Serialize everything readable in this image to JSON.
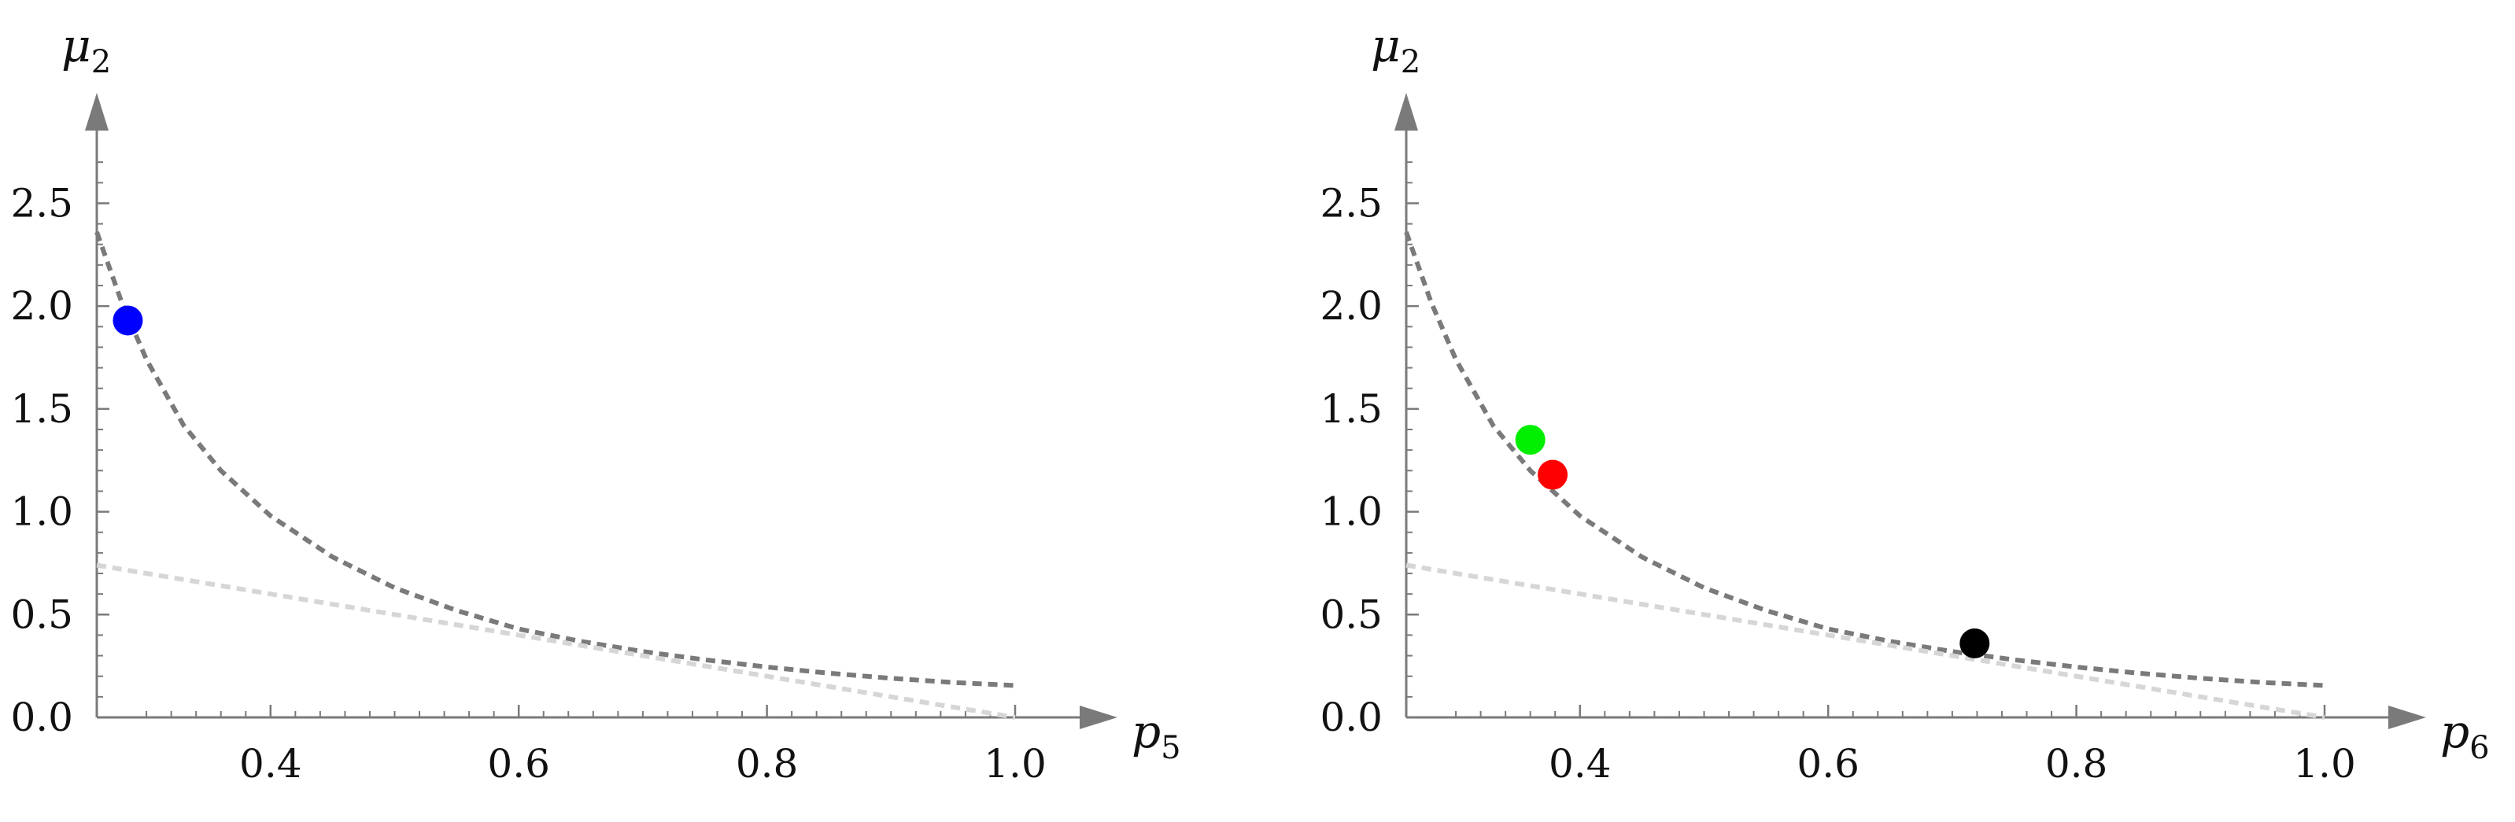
{
  "chart_data": [
    {
      "type": "line",
      "xlabel": {
        "base": "p",
        "sub": "5"
      },
      "ylabel": {
        "base": "μ",
        "sub": "2"
      },
      "xlim": [
        0.26,
        1.0
      ],
      "ylim": [
        0.0,
        2.8
      ],
      "xticks": [
        0.4,
        0.6,
        0.8,
        1.0
      ],
      "xtick_labels": [
        "0.4",
        "0.6",
        "0.8",
        "1.0"
      ],
      "yticks": [
        0.0,
        0.5,
        1.0,
        1.5,
        2.0,
        2.5
      ],
      "ytick_labels": [
        "0.0",
        "0.5",
        "1.0",
        "1.5",
        "2.0",
        "2.5"
      ],
      "grid": false,
      "series": [
        {
          "style": "dashed",
          "color": "#7a7a7a",
          "x": [
            0.26,
            0.28,
            0.3,
            0.33,
            0.36,
            0.4,
            0.45,
            0.5,
            0.55,
            0.6,
            0.65,
            0.7,
            0.75,
            0.8,
            0.85,
            0.9,
            0.95,
            1.0
          ],
          "y": [
            2.36,
            2.02,
            1.74,
            1.42,
            1.2,
            0.98,
            0.78,
            0.63,
            0.52,
            0.43,
            0.37,
            0.32,
            0.28,
            0.245,
            0.215,
            0.19,
            0.17,
            0.155
          ]
        },
        {
          "style": "dashed",
          "color": "#d6d6d6",
          "x": [
            0.26,
            1.0
          ],
          "y": [
            0.74,
            0.0
          ]
        }
      ],
      "points": [
        {
          "x": 0.285,
          "y": 1.93,
          "color": "#0000ff"
        }
      ]
    },
    {
      "type": "line",
      "xlabel": {
        "base": "p",
        "sub": "6"
      },
      "ylabel": {
        "base": "μ",
        "sub": "2"
      },
      "xlim": [
        0.26,
        1.0
      ],
      "ylim": [
        0.0,
        2.8
      ],
      "xticks": [
        0.4,
        0.6,
        0.8,
        1.0
      ],
      "xtick_labels": [
        "0.4",
        "0.6",
        "0.8",
        "1.0"
      ],
      "yticks": [
        0.0,
        0.5,
        1.0,
        1.5,
        2.0,
        2.5
      ],
      "ytick_labels": [
        "0.0",
        "0.5",
        "1.0",
        "1.5",
        "2.0",
        "2.5"
      ],
      "grid": false,
      "series": [
        {
          "style": "dashed",
          "color": "#7a7a7a",
          "x": [
            0.26,
            0.28,
            0.3,
            0.33,
            0.36,
            0.4,
            0.45,
            0.5,
            0.55,
            0.6,
            0.65,
            0.7,
            0.75,
            0.8,
            0.85,
            0.9,
            0.95,
            1.0
          ],
          "y": [
            2.36,
            2.02,
            1.74,
            1.42,
            1.2,
            0.98,
            0.78,
            0.63,
            0.52,
            0.43,
            0.37,
            0.32,
            0.28,
            0.245,
            0.215,
            0.19,
            0.17,
            0.155
          ]
        },
        {
          "style": "dashed",
          "color": "#d6d6d6",
          "x": [
            0.26,
            1.0
          ],
          "y": [
            0.74,
            0.0
          ]
        }
      ],
      "points": [
        {
          "x": 0.36,
          "y": 1.35,
          "color": "#00ee00"
        },
        {
          "x": 0.378,
          "y": 1.18,
          "color": "#ff0000"
        },
        {
          "x": 0.718,
          "y": 0.36,
          "color": "#000000"
        }
      ]
    }
  ]
}
